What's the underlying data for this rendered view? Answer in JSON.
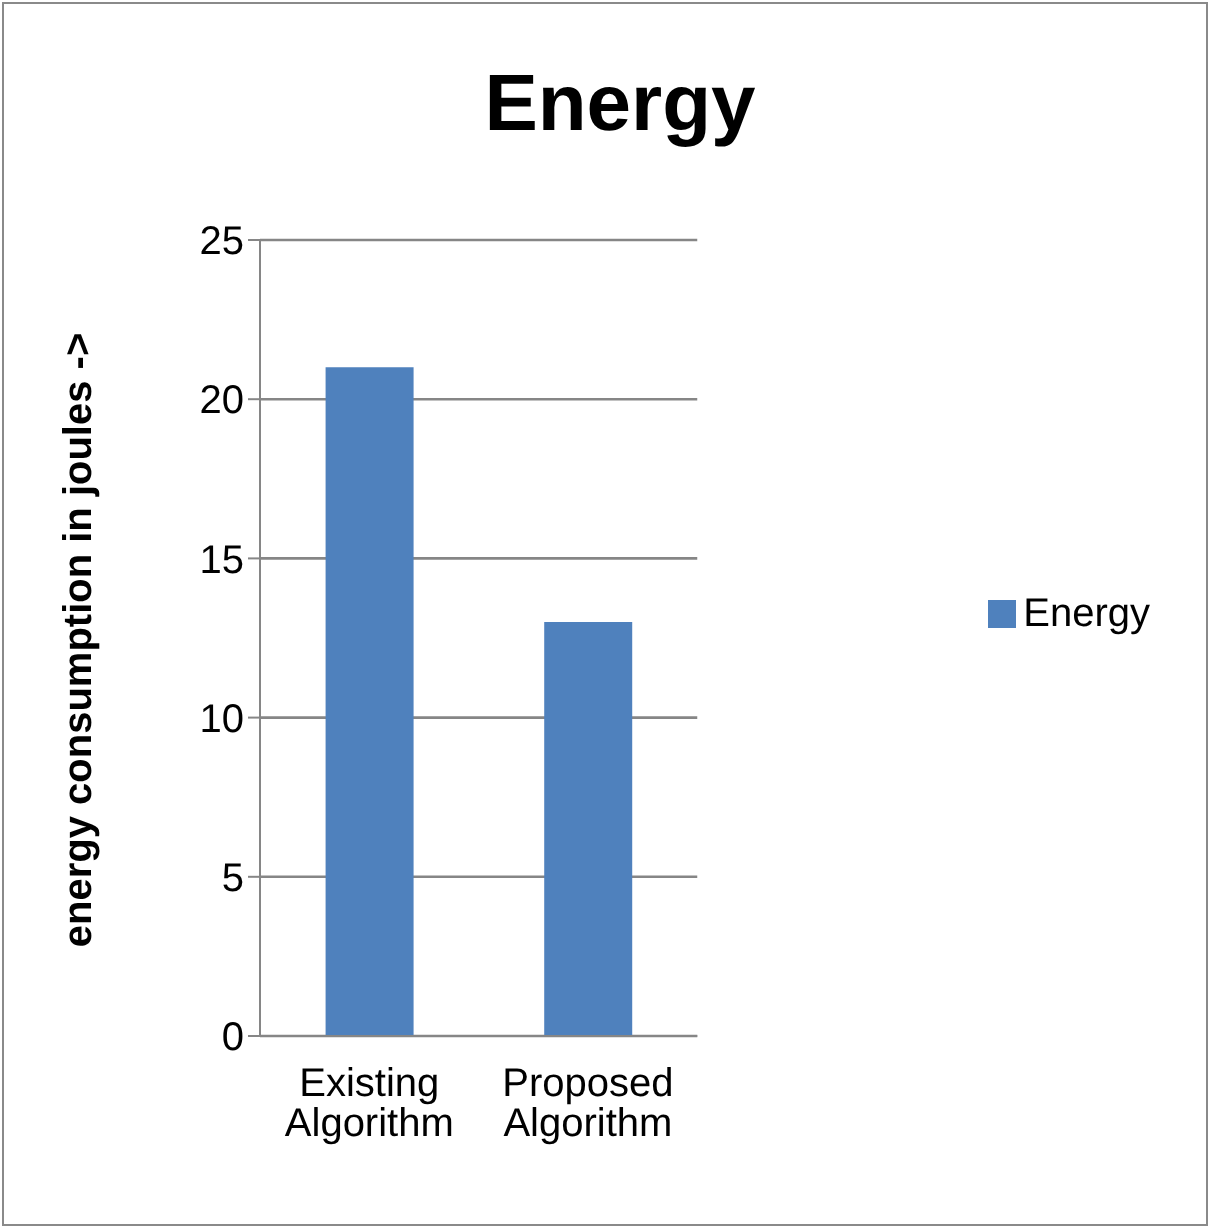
{
  "chart_data": {
    "type": "bar",
    "title": "Energy",
    "ylabel": "energy consumption in joules ->",
    "categories": [
      "Existing Algorithm",
      "Proposed Algorithm"
    ],
    "series": [
      {
        "name": "Energy",
        "color": "#4f81bd",
        "values": [
          21,
          13
        ]
      }
    ],
    "ylim": [
      0,
      25
    ],
    "yticks": [
      0,
      5,
      10,
      15,
      20,
      25
    ],
    "grid": "y",
    "legend": "right"
  }
}
